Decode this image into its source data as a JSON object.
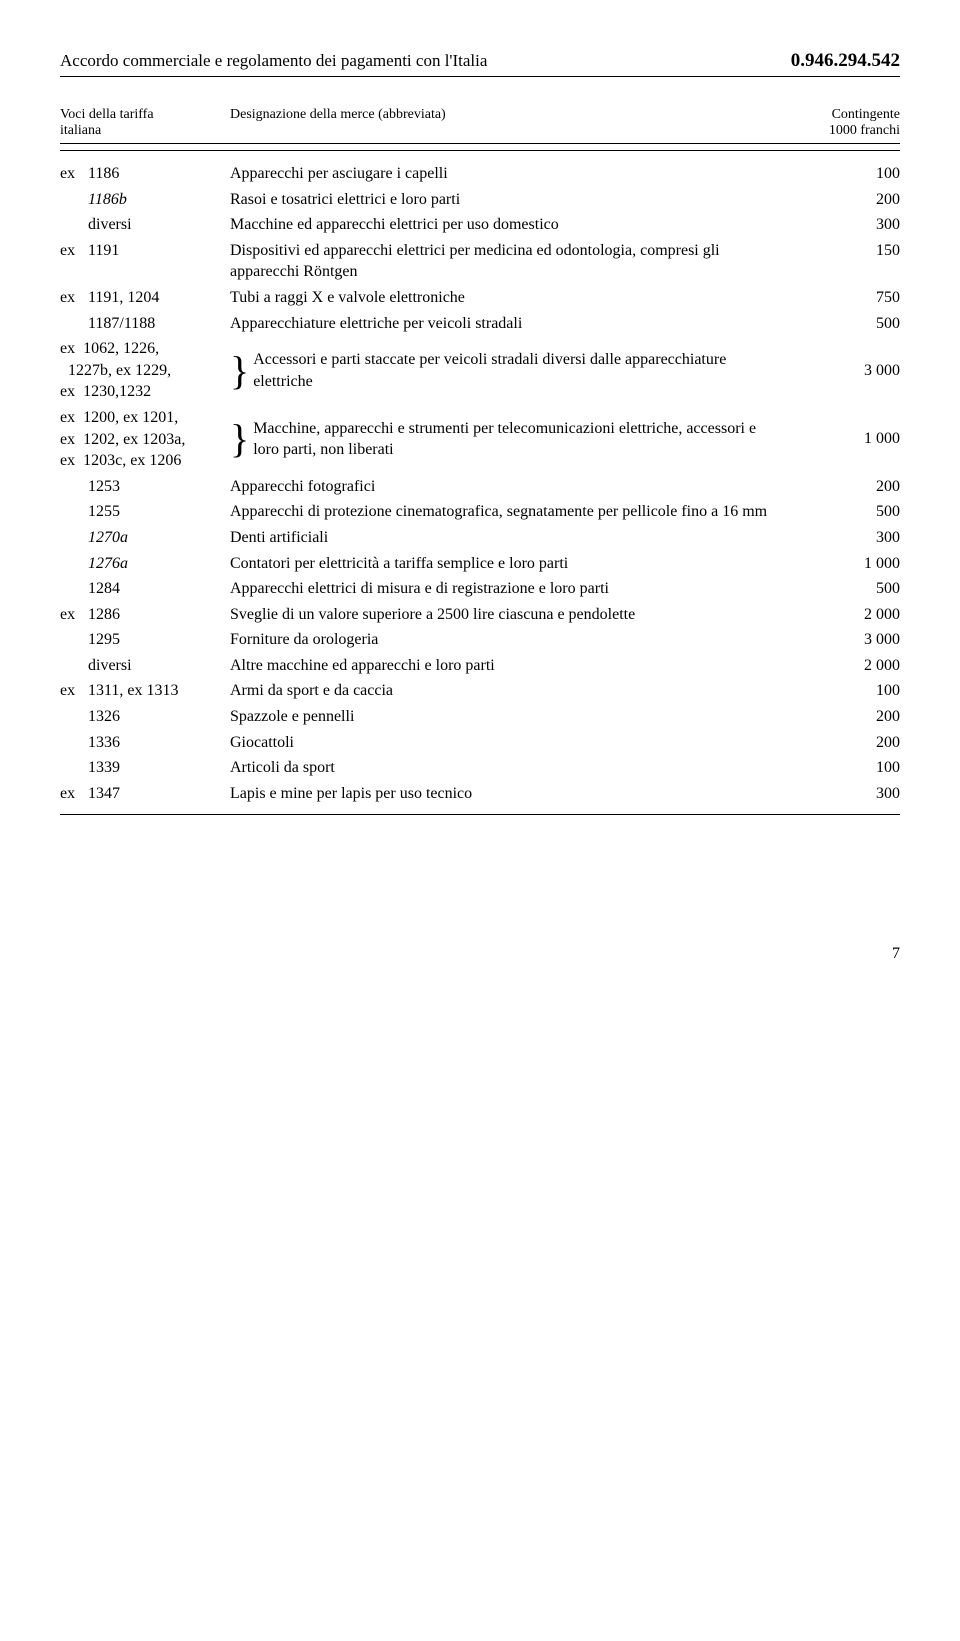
{
  "header": {
    "title": "Accordo commerciale e regolamento dei pagamenti con l'Italia",
    "code": "0.946.294.542"
  },
  "columns": {
    "left_line1": "Voci della tariffa",
    "left_line2": "italiana",
    "mid": "Designazione della merce (abbreviata)",
    "right_line1": "Contingente",
    "right_line2": "1000 franchi"
  },
  "rows": [
    {
      "prefix": "ex",
      "code": "1186",
      "desc": "Apparecchi per asciugare i capelli",
      "val": "100"
    },
    {
      "prefix": "",
      "code": "1186b",
      "code_italic": true,
      "desc": "Rasoi e tosatrici elettrici e loro parti",
      "val": "200"
    },
    {
      "prefix": "",
      "code": "diversi",
      "desc": "Macchine ed apparecchi elettrici per uso domestico",
      "val": "300"
    },
    {
      "prefix": "ex",
      "code": "1191",
      "desc": "Dispositivi ed apparecchi elettrici per medicina ed odontologia, compresi gli apparecchi Röntgen",
      "val": "150"
    },
    {
      "prefix": "ex",
      "code": "1191, 1204",
      "desc": "Tubi a raggi X e valvole elettroniche",
      "val": "750"
    },
    {
      "prefix": "",
      "code": "1187/1188",
      "desc": "Apparecchiature elettriche per veicoli stradali",
      "val": "500"
    }
  ],
  "brace1": {
    "left_lines": [
      {
        "prefix": "ex",
        "code": "1062, 1226,"
      },
      {
        "prefix": "",
        "code": "1227b, ex 1229,",
        "code_italic_part": "1227b,"
      },
      {
        "prefix": "ex",
        "code": "1230,1232"
      }
    ],
    "desc": "Accessori e parti staccate per veicoli stradali diversi dalle apparecchiature elettriche",
    "val": "3 000"
  },
  "brace2": {
    "left_lines": [
      {
        "prefix": "ex",
        "code": "1200, ex 1201,"
      },
      {
        "prefix": "ex",
        "code": "1202, ex 1203a,",
        "italic_tail": "a,"
      },
      {
        "prefix": "ex",
        "code": "1203c, ex 1206",
        "italic_mid": "c,"
      }
    ],
    "desc": "Macchine, apparecchi e strumenti per telecomunicazioni elettriche, accessori e loro parti, non liberati",
    "val": "1 000"
  },
  "rows2": [
    {
      "prefix": "",
      "code": "1253",
      "desc": "Apparecchi fotografici",
      "val": "200"
    },
    {
      "prefix": "",
      "code": "1255",
      "desc": "Apparecchi di protezione cinematografica, segnatamente per pellicole fino a 16 mm",
      "val": "500"
    },
    {
      "prefix": "",
      "code": "1270a",
      "code_italic": true,
      "desc": "Denti artificiali",
      "val": "300"
    },
    {
      "prefix": "",
      "code": "1276a",
      "code_italic": true,
      "desc": "Contatori per elettricità a tariffa semplice e loro parti",
      "val": "1 000"
    },
    {
      "prefix": "",
      "code": "1284",
      "desc": "Apparecchi elettrici di misura e di registrazione e loro parti",
      "val": "500"
    },
    {
      "prefix": "ex",
      "code": "1286",
      "desc": "Sveglie di un valore superiore a 2500 lire ciascuna e pendolette",
      "val": "2 000"
    },
    {
      "prefix": "",
      "code": "1295",
      "desc": "Forniture da orologeria",
      "val": "3 000"
    },
    {
      "prefix": "",
      "code": "diversi",
      "desc": "Altre macchine ed apparecchi e loro parti",
      "val": "2 000"
    },
    {
      "prefix": "ex",
      "code": "1311, ex 1313",
      "desc": "Armi da sport e da caccia",
      "val": "100"
    },
    {
      "prefix": "",
      "code": "1326",
      "desc": "Spazzole e pennelli",
      "val": "200"
    },
    {
      "prefix": "",
      "code": "1336",
      "desc": "Giocattoli",
      "val": "200"
    },
    {
      "prefix": "",
      "code": "1339",
      "desc": "Articoli da sport",
      "val": "100"
    },
    {
      "prefix": "ex",
      "code": "1347",
      "desc": "Lapis e mine per lapis per uso tecnico",
      "val": "300"
    }
  ],
  "page_number": "7"
}
